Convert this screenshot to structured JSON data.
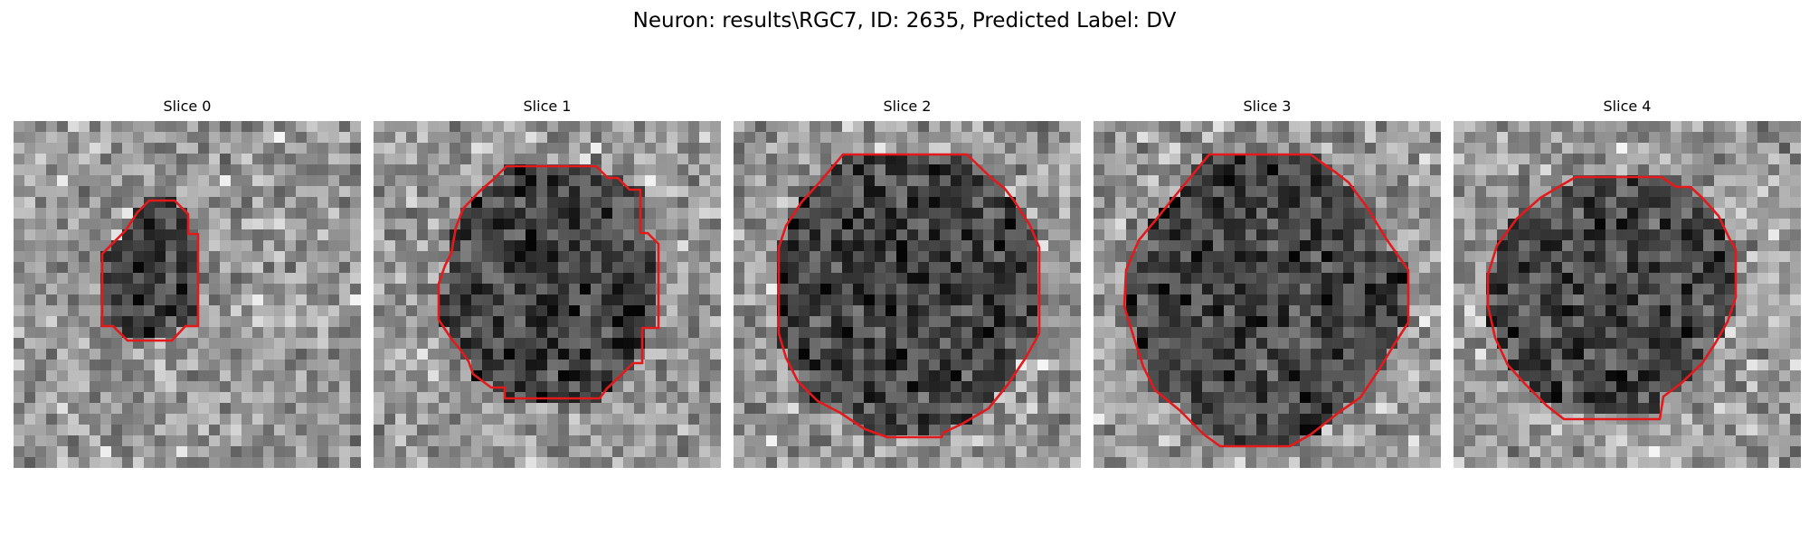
{
  "figure": {
    "title": "Neuron: results\\RGC7, ID: 2635, Predicted Label: DV"
  },
  "colors": {
    "contour": "#e31a1c",
    "colormap": "grayscale"
  },
  "slices": [
    {
      "title": "Slice 0"
    },
    {
      "title": "Slice 1"
    },
    {
      "title": "Slice 2"
    },
    {
      "title": "Slice 3"
    },
    {
      "title": "Slice 4"
    }
  ]
}
